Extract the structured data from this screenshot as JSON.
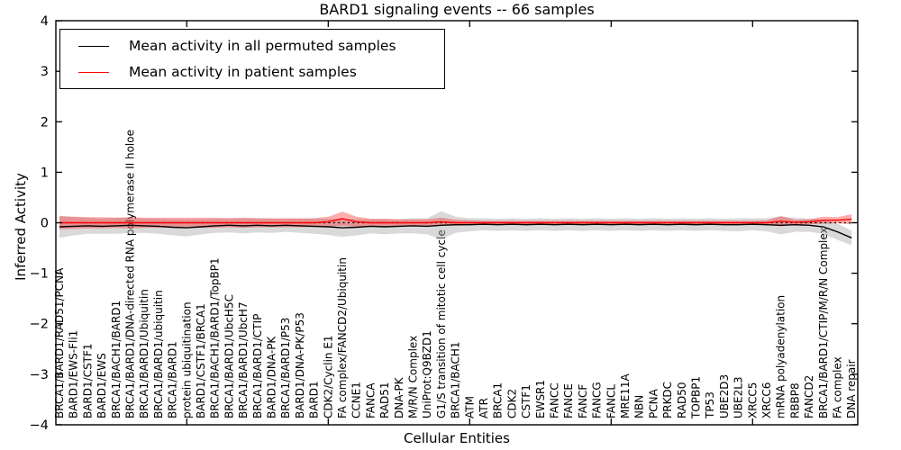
{
  "figure": {
    "title": "BARD1 signaling events -- 66 samples",
    "xlabel": "Cellular Entities",
    "ylabel": "Inferred Activity"
  },
  "legend": {
    "permuted_label": "Mean activity in all permuted samples",
    "patient_label": "Mean activity in patient samples"
  },
  "colors": {
    "permuted_line": "#000000",
    "patient_line": "#ff0000",
    "permuted_band": "#aaaaaa",
    "patient_band": "#ff0000",
    "frame": "#000000"
  },
  "chart_data": {
    "type": "line",
    "title": "BARD1 signaling events -- 66 samples",
    "xlabel": "Cellular Entities",
    "ylabel": "Inferred Activity",
    "ylim": [
      -4,
      4
    ],
    "yticks": [
      -4,
      -3,
      -2,
      -1,
      0,
      1,
      2,
      3,
      4
    ],
    "grid": false,
    "legend_position": "upper left",
    "zero_line": "dashed",
    "categories": [
      "BRCA1/BARD1/RAD51/PCNA",
      "BARD1/EWS-Fli1",
      "BARD1/CSTF1",
      "BARD1/EWS",
      "BRCA1/BACH1/BARD1",
      "BRCA1/BARD1/DNA-directed RNA polymerase II holoe",
      "BRCA1/BARD1/Ubiquitin",
      "BRCA1/BARD1/ubiquitin",
      "BRCA1/BARD1",
      "protein ubiquitination",
      "BARD1/CSTF1/BRCA1",
      "BRCA1/BACH1/BARD1/TopBP1",
      "BRCA1/BARD1/UbcH5C",
      "BRCA1/BARD1/UbcH7",
      "BRCA1/BARD1/CTIP",
      "BARD1/DNA-PK",
      "BRCA1/BARD1/P53",
      "BARD1/DNA-PK/P53",
      "BARD1",
      "CDK2/Cyclin E1",
      "FA complex/FANCD2/Ubiquitin",
      "CCNE1",
      "FANCA",
      "RAD51",
      "DNA-PK",
      "M/R/N Complex",
      "UniProt:Q9BZD1",
      "G1/S transition of mitotic cell cycle",
      "BRCA1/BACH1",
      "ATM",
      "ATR",
      "BRCA1",
      "CDK2",
      "CSTF1",
      "EWSR1",
      "FANCC",
      "FANCE",
      "FANCF",
      "FANCG",
      "FANCL",
      "MRE11A",
      "NBN",
      "PCNA",
      "PRKDC",
      "RAD50",
      "TOPBP1",
      "TP53",
      "UBE2D3",
      "UBE2L3",
      "XRCC5",
      "XRCC6",
      "mRNA polyadenylation",
      "RBBP8",
      "FANCD2",
      "BRCA1/BARD1/CTIP/M/R/N Complex",
      "FA complex",
      "DNA repair"
    ],
    "series": [
      {
        "name": "Mean activity in all permuted samples",
        "color": "#000000",
        "values": [
          -0.08,
          -0.07,
          -0.06,
          -0.07,
          -0.06,
          -0.05,
          -0.06,
          -0.07,
          -0.09,
          -0.1,
          -0.08,
          -0.06,
          -0.05,
          -0.06,
          -0.05,
          -0.06,
          -0.05,
          -0.06,
          -0.07,
          -0.08,
          -0.1,
          -0.09,
          -0.07,
          -0.08,
          -0.07,
          -0.06,
          -0.07,
          -0.05,
          -0.04,
          -0.04,
          -0.03,
          -0.04,
          -0.03,
          -0.04,
          -0.03,
          -0.04,
          -0.03,
          -0.04,
          -0.03,
          -0.04,
          -0.03,
          -0.04,
          -0.03,
          -0.04,
          -0.03,
          -0.04,
          -0.03,
          -0.04,
          -0.04,
          -0.03,
          -0.04,
          -0.05,
          -0.04,
          -0.05,
          -0.08,
          -0.18,
          -0.3
        ],
        "band_halfwidth": [
          0.22,
          0.18,
          0.16,
          0.15,
          0.16,
          0.15,
          0.14,
          0.15,
          0.16,
          0.17,
          0.15,
          0.14,
          0.14,
          0.15,
          0.14,
          0.14,
          0.13,
          0.14,
          0.15,
          0.16,
          0.18,
          0.16,
          0.14,
          0.15,
          0.14,
          0.15,
          0.16,
          0.28,
          0.16,
          0.13,
          0.12,
          0.12,
          0.12,
          0.12,
          0.12,
          0.12,
          0.12,
          0.12,
          0.12,
          0.12,
          0.12,
          0.12,
          0.12,
          0.12,
          0.12,
          0.12,
          0.12,
          0.12,
          0.13,
          0.12,
          0.13,
          0.18,
          0.14,
          0.13,
          0.14,
          0.16,
          0.14
        ]
      },
      {
        "name": "Mean activity in patient samples",
        "color": "#ff0000",
        "values": [
          0,
          0,
          0,
          0,
          0,
          0,
          0,
          0,
          0,
          0,
          0,
          0,
          0,
          0,
          0,
          0,
          0,
          0,
          0,
          0.02,
          0.08,
          0.02,
          0,
          0,
          0,
          0,
          0,
          0.02,
          0,
          0,
          0,
          0,
          0,
          0,
          0,
          0,
          0,
          0,
          0,
          0,
          0,
          0,
          0,
          0,
          0,
          0,
          0,
          0,
          0,
          0,
          0,
          0.03,
          0.01,
          0.02,
          0.05,
          0.05,
          0.07
        ],
        "band_halfwidth": [
          0.13,
          0.12,
          0.11,
          0.11,
          0.1,
          0.11,
          0.1,
          0.1,
          0.1,
          0.1,
          0.1,
          0.1,
          0.09,
          0.1,
          0.09,
          0.09,
          0.09,
          0.09,
          0.09,
          0.1,
          0.14,
          0.1,
          0.08,
          0.08,
          0.07,
          0.07,
          0.07,
          0.08,
          0.06,
          0.05,
          0.04,
          0.04,
          0.04,
          0.04,
          0.04,
          0.04,
          0.04,
          0.04,
          0.04,
          0.04,
          0.04,
          0.04,
          0.04,
          0.04,
          0.04,
          0.04,
          0.04,
          0.04,
          0.04,
          0.04,
          0.05,
          0.1,
          0.05,
          0.05,
          0.07,
          0.06,
          0.1
        ]
      }
    ]
  }
}
